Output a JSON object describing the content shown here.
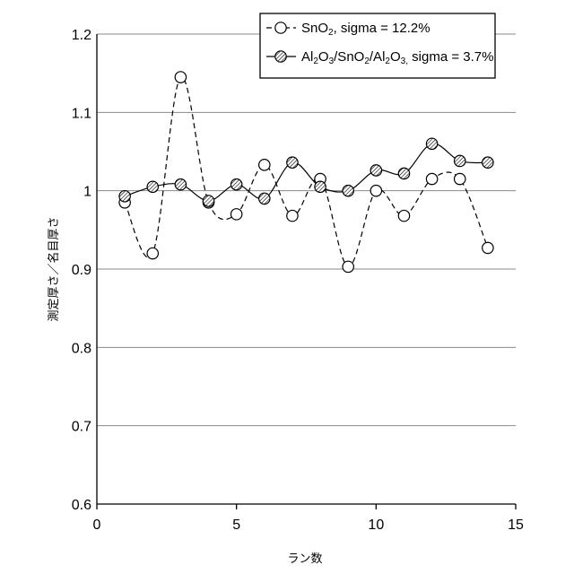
{
  "chart_data": {
    "type": "line",
    "xlabel": "ラン数",
    "ylabel": "測定厚さ／名目厚さ",
    "xlim": [
      0,
      15
    ],
    "ylim": [
      0.6,
      1.2
    ],
    "x_ticks": [
      "0",
      "5",
      "10",
      "15"
    ],
    "y_ticks": [
      "0.6",
      "0.7",
      "0.8",
      "0.9",
      "1",
      "1.1",
      "1.2"
    ],
    "grid": "horizontal",
    "legend_position": "top-right",
    "x": [
      1,
      2,
      3,
      4,
      5,
      6,
      7,
      8,
      9,
      10,
      11,
      12,
      13,
      14
    ],
    "series": [
      {
        "name": "SnO2, sigma = 12.2%",
        "legend_parts": [
          [
            "SnO",
            "base"
          ],
          [
            "2",
            "sub"
          ],
          [
            ", sigma = 12.2%",
            "base"
          ]
        ],
        "style": "dashed",
        "marker": "open-circle",
        "values": [
          0.985,
          0.92,
          1.145,
          0.985,
          0.97,
          1.033,
          0.968,
          1.015,
          0.903,
          1.0,
          0.968,
          1.015,
          1.015,
          0.927
        ]
      },
      {
        "name": "Al2O3/SnO2/Al2O3, sigma = 3.7%",
        "legend_parts": [
          [
            "Al",
            "base"
          ],
          [
            "2",
            "sub"
          ],
          [
            "O",
            "base"
          ],
          [
            "3",
            "sub"
          ],
          [
            "/SnO",
            "base"
          ],
          [
            "2",
            "sub"
          ],
          [
            "/Al",
            "base"
          ],
          [
            "2",
            "sub"
          ],
          [
            "O",
            "base"
          ],
          [
            "3,",
            "sub"
          ],
          [
            " sigma = 3.7%",
            "base"
          ]
        ],
        "style": "solid",
        "marker": "hatched-circle",
        "values": [
          0.993,
          1.005,
          1.008,
          0.987,
          1.008,
          0.99,
          1.036,
          1.005,
          1.0,
          1.026,
          1.022,
          1.06,
          1.038,
          1.036
        ]
      }
    ]
  }
}
